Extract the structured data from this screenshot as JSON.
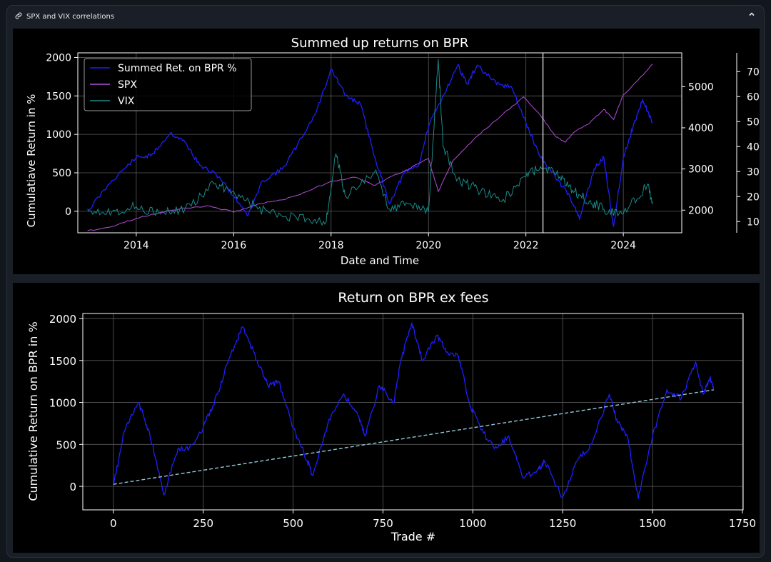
{
  "panel": {
    "title": "SPX and VIX correlations",
    "icon": "link-icon",
    "collapse_icon": "chevron-up-icon"
  },
  "chart_data": [
    {
      "type": "line",
      "title": "Summed up returns on BPR",
      "xlabel": "Date and Time",
      "ylabel": "Cumulatiave Return in %",
      "x_range": [
        2012.8,
        2025.2
      ],
      "ylim": [
        -280,
        2060
      ],
      "x_ticks": [
        2014,
        2016,
        2018,
        2020,
        2022,
        2024
      ],
      "y_ticks": [
        0,
        500,
        1000,
        1500,
        2000
      ],
      "grid": true,
      "legend": {
        "position": "top-left",
        "entries": [
          "Summed Ret. on BPR %",
          "SPX",
          "VIX"
        ]
      },
      "secondary_axes": [
        {
          "series": "SPX",
          "ylim": [
            1450,
            5820
          ],
          "ticks": [
            2000,
            3000,
            4000,
            5000
          ]
        },
        {
          "series": "VIX",
          "ylim": [
            5.5,
            77.5
          ],
          "ticks": [
            10,
            20,
            30,
            40,
            50,
            60,
            70
          ]
        }
      ],
      "vertical_marker_x": 2022.35,
      "series": [
        {
          "name": "Summed Ret. on BPR %",
          "color": "#1f1fff",
          "axis": "left",
          "x": [
            2013.0,
            2013.5,
            2014.0,
            2014.3,
            2014.7,
            2015.0,
            2015.3,
            2015.7,
            2016.0,
            2016.3,
            2016.6,
            2017.0,
            2017.3,
            2017.7,
            2018.0,
            2018.3,
            2018.6,
            2018.9,
            2019.2,
            2019.5,
            2019.8,
            2020.0,
            2020.3,
            2020.6,
            2020.8,
            2021.0,
            2021.4,
            2021.7,
            2022.0,
            2022.3,
            2022.6,
            2022.9,
            2023.1,
            2023.4,
            2023.6,
            2023.8,
            2024.0,
            2024.2,
            2024.4,
            2024.6
          ],
          "y": [
            0,
            400,
            700,
            720,
            1020,
            900,
            600,
            450,
            200,
            -50,
            400,
            550,
            850,
            1300,
            1850,
            1500,
            1400,
            700,
            100,
            500,
            600,
            1100,
            1500,
            1900,
            1650,
            1900,
            1650,
            1620,
            1150,
            700,
            450,
            200,
            -100,
            550,
            700,
            -200,
            700,
            1100,
            1450,
            1150
          ]
        },
        {
          "name": "SPX",
          "color": "#b44cdc",
          "axis": "spx",
          "x": [
            2013.0,
            2013.5,
            2014.0,
            2014.5,
            2015.0,
            2015.5,
            2016.0,
            2016.5,
            2017.0,
            2017.5,
            2018.0,
            2018.5,
            2018.9,
            2019.2,
            2019.5,
            2020.0,
            2020.2,
            2020.5,
            2021.0,
            2021.5,
            2021.95,
            2022.3,
            2022.6,
            2022.8,
            2023.0,
            2023.3,
            2023.6,
            2023.8,
            2024.0,
            2024.3,
            2024.6
          ],
          "y": [
            1500,
            1600,
            1800,
            1950,
            2050,
            2100,
            1950,
            2150,
            2250,
            2450,
            2700,
            2800,
            2600,
            2800,
            2950,
            3250,
            2450,
            3200,
            3800,
            4300,
            4750,
            4300,
            3800,
            3650,
            3900,
            4100,
            4450,
            4200,
            4800,
            5150,
            5550
          ]
        },
        {
          "name": "VIX",
          "color": "#1a8a8a",
          "axis": "vix",
          "x": [
            2013.0,
            2013.5,
            2014.0,
            2014.5,
            2015.0,
            2015.6,
            2016.0,
            2016.5,
            2017.0,
            2017.5,
            2017.9,
            2018.1,
            2018.3,
            2018.9,
            2019.2,
            2019.6,
            2020.0,
            2020.2,
            2020.3,
            2020.6,
            2021.0,
            2021.5,
            2022.0,
            2022.3,
            2022.7,
            2023.0,
            2023.3,
            2023.6,
            2024.0,
            2024.5,
            2024.6
          ],
          "y": [
            15,
            14,
            16,
            13,
            15,
            25,
            22,
            15,
            12,
            11,
            10,
            37,
            20,
            30,
            15,
            17,
            14,
            75,
            40,
            27,
            23,
            18,
            28,
            32,
            28,
            22,
            18,
            15,
            13,
            25,
            17
          ]
        }
      ]
    },
    {
      "type": "line",
      "title": "Return on BPR ex fees",
      "xlabel": "Trade #",
      "ylabel": "Cumulative Return on BPR in %",
      "xlim": [
        -85,
        1752
      ],
      "ylim": [
        -280,
        2060
      ],
      "x_ticks": [
        0,
        250,
        500,
        750,
        1000,
        1250,
        1500,
        1750
      ],
      "y_ticks": [
        0,
        500,
        1000,
        1500,
        2000
      ],
      "grid": true,
      "series": [
        {
          "name": "",
          "color": "#1f1fff",
          "style": "solid",
          "x": [
            0,
            30,
            70,
            100,
            140,
            180,
            210,
            250,
            290,
            320,
            360,
            400,
            430,
            460,
            500,
            540,
            555,
            600,
            640,
            680,
            700,
            740,
            780,
            800,
            830,
            860,
            900,
            930,
            960,
            990,
            1020,
            1060,
            1100,
            1140,
            1180,
            1200,
            1250,
            1290,
            1330,
            1380,
            1400,
            1430,
            1460,
            1500,
            1540,
            1580,
            1620,
            1640,
            1660,
            1670
          ],
          "y": [
            0,
            650,
            1000,
            650,
            -100,
            450,
            450,
            700,
            1100,
            1500,
            1900,
            1500,
            1200,
            1250,
            700,
            300,
            130,
            800,
            1100,
            850,
            600,
            1200,
            1000,
            1500,
            1950,
            1500,
            1800,
            1600,
            1550,
            1000,
            700,
            450,
            600,
            100,
            200,
            300,
            -130,
            300,
            500,
            1100,
            800,
            600,
            -150,
            600,
            1150,
            1050,
            1480,
            1100,
            1300,
            1150
          ]
        },
        {
          "name": "",
          "color": "#8fc9d9",
          "style": "dashed",
          "x": [
            0,
            1670
          ],
          "y": [
            25,
            1150
          ]
        }
      ]
    }
  ]
}
